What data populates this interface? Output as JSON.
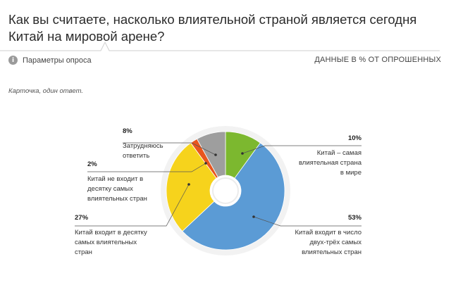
{
  "header": {
    "title": "Как вы считаете, насколько влиятельной страной является сегодня Китай на мировой арене?",
    "params_label": "Параметры опроса",
    "info_icon": "info-icon",
    "units_label": "ДАННЫЕ В % ОТ ОПРОШЕННЫХ"
  },
  "note": "Карточка, один ответ.",
  "colors": {
    "green": "#7cb82f",
    "blue": "#5b9bd5",
    "yellow": "#f6d31c",
    "orange": "#e8561e",
    "gray": "#9e9e9e"
  },
  "chart_data": {
    "type": "pie",
    "donut": true,
    "slices": [
      {
        "label": "Китай – самая влиятельная страна в мире",
        "value": 10,
        "display": "10%",
        "color": "#7cb82f"
      },
      {
        "label": "Китай входит в число двух-трёх самых влиятельных стран",
        "value": 53,
        "display": "53%",
        "color": "#5b9bd5"
      },
      {
        "label": "Китай входит в десятку самых влиятельных стран",
        "value": 27,
        "display": "27%",
        "color": "#f6d31c"
      },
      {
        "label": "Китай не входит в десятку самых влиятельных стран",
        "value": 2,
        "display": "2%",
        "color": "#e8561e"
      },
      {
        "label": "Затрудняюсь ответить",
        "value": 8,
        "display": "8%",
        "color": "#9e9e9e"
      }
    ],
    "legend_lines": [
      [
        "Китай – самая",
        "влиятельная страна",
        "в мире"
      ],
      [
        "Китай входит в число",
        "двух-трёх самых",
        "влиятельных стран"
      ],
      [
        "Китай входит в десятку",
        "самых влиятельных",
        "стран"
      ],
      [
        "Китай не входит в",
        "десятку самых",
        "влиятельных стран"
      ],
      [
        "Затрудняюсь",
        "ответить"
      ]
    ]
  }
}
